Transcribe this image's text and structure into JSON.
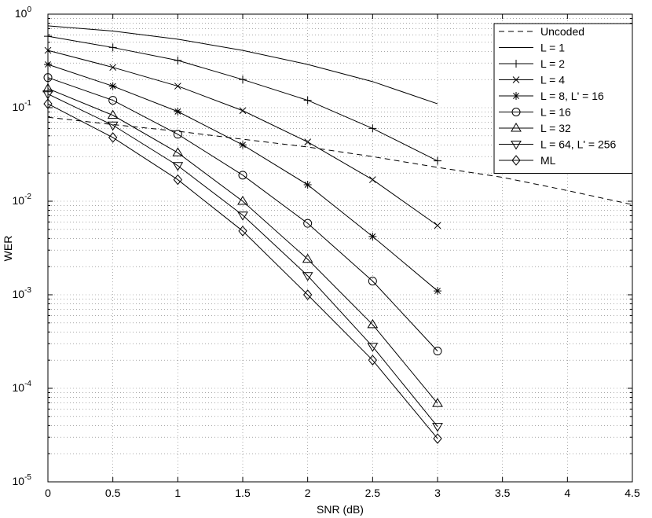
{
  "chart_data": {
    "type": "line",
    "title": "",
    "xlabel": "SNR (dB)",
    "ylabel": "WER",
    "xlim": [
      0,
      4.5
    ],
    "ylim": [
      1e-05,
      1
    ],
    "yscale": "log",
    "grid": true,
    "legend_position": "top-right",
    "x_ticks": [
      {
        "value": 0,
        "label": "0"
      },
      {
        "value": 0.5,
        "label": "0.5"
      },
      {
        "value": 1,
        "label": "1"
      },
      {
        "value": 1.5,
        "label": "1.5"
      },
      {
        "value": 2,
        "label": "2"
      },
      {
        "value": 2.5,
        "label": "2.5"
      },
      {
        "value": 3,
        "label": "3"
      },
      {
        "value": 3.5,
        "label": "3.5"
      },
      {
        "value": 4,
        "label": "4"
      },
      {
        "value": 4.5,
        "label": "4.5"
      }
    ],
    "y_ticks": [
      {
        "value": 1,
        "base": "10",
        "exp": "0"
      },
      {
        "value": 0.1,
        "base": "10",
        "exp": "-1"
      },
      {
        "value": 0.01,
        "base": "10",
        "exp": "-2"
      },
      {
        "value": 0.001,
        "base": "10",
        "exp": "-3"
      },
      {
        "value": 0.0001,
        "base": "10",
        "exp": "-4"
      },
      {
        "value": 1e-05,
        "base": "10",
        "exp": "-5"
      }
    ],
    "series": [
      {
        "name": "Uncoded",
        "marker": "none",
        "dash": true,
        "x": [
          0,
          0.5,
          1,
          1.5,
          2,
          2.5,
          3,
          3.5,
          4,
          4.5
        ],
        "y": [
          0.079,
          0.066,
          0.056,
          0.046,
          0.038,
          0.03,
          0.023,
          0.018,
          0.013,
          0.0092
        ]
      },
      {
        "name": "L = 1",
        "marker": "none",
        "dash": false,
        "x": [
          0,
          0.5,
          1,
          1.5,
          2,
          2.5,
          3
        ],
        "y": [
          0.75,
          0.66,
          0.54,
          0.41,
          0.29,
          0.19,
          0.11
        ]
      },
      {
        "name": "L = 2",
        "marker": "plus",
        "dash": false,
        "x": [
          0,
          0.5,
          1,
          1.5,
          2,
          2.5,
          3
        ],
        "y": [
          0.58,
          0.44,
          0.32,
          0.2,
          0.12,
          0.06,
          0.027
        ]
      },
      {
        "name": "L = 4",
        "marker": "x",
        "dash": false,
        "x": [
          0,
          0.5,
          1,
          1.5,
          2,
          2.5,
          3
        ],
        "y": [
          0.41,
          0.27,
          0.17,
          0.093,
          0.043,
          0.017,
          0.0055
        ]
      },
      {
        "name": "L = 8, L' = 16",
        "marker": "star",
        "dash": false,
        "x": [
          0,
          0.5,
          1,
          1.5,
          2,
          2.5,
          3
        ],
        "y": [
          0.29,
          0.17,
          0.091,
          0.04,
          0.015,
          0.0042,
          0.0011
        ]
      },
      {
        "name": "L = 16",
        "marker": "circle",
        "dash": false,
        "x": [
          0,
          0.5,
          1,
          1.5,
          2,
          2.5,
          3
        ],
        "y": [
          0.21,
          0.12,
          0.052,
          0.019,
          0.0058,
          0.0014,
          0.00025
        ]
      },
      {
        "name": "L = 32",
        "marker": "triangle-up",
        "dash": false,
        "x": [
          0,
          0.5,
          1,
          1.5,
          2,
          2.5,
          3
        ],
        "y": [
          0.16,
          0.083,
          0.033,
          0.01,
          0.0024,
          0.00048,
          6.9e-05
        ]
      },
      {
        "name": "L = 64, L' = 256",
        "marker": "triangle-down",
        "dash": false,
        "x": [
          0,
          0.5,
          1,
          1.5,
          2,
          2.5,
          3
        ],
        "y": [
          0.14,
          0.065,
          0.024,
          0.0071,
          0.0016,
          0.00028,
          3.9e-05
        ]
      },
      {
        "name": "ML",
        "marker": "diamond",
        "dash": false,
        "x": [
          0,
          0.5,
          1,
          1.5,
          2,
          2.5,
          3
        ],
        "y": [
          0.11,
          0.048,
          0.017,
          0.0048,
          0.001,
          0.0002,
          2.9e-05
        ]
      }
    ]
  }
}
